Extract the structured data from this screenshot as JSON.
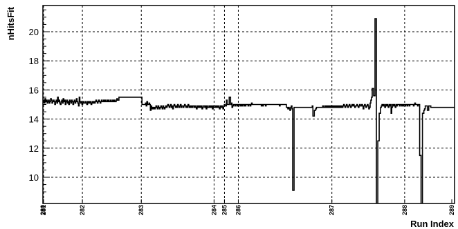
{
  "chart_data": {
    "type": "line",
    "title": "",
    "xlabel": "Run Index",
    "ylabel": "nHitsFit",
    "ylim": [
      8.2,
      21.8
    ],
    "yticks": [
      10,
      12,
      14,
      16,
      18,
      20
    ],
    "grid": true,
    "x_tick_labels": [
      {
        "label": "280",
        "x": 0
      },
      {
        "label": "281",
        "x": 1
      },
      {
        "label": "282",
        "x": 57
      },
      {
        "label": "283",
        "x": 142
      },
      {
        "label": "284",
        "x": 247
      },
      {
        "label": "285",
        "x": 262
      },
      {
        "label": "286",
        "x": 282
      },
      {
        "label": "287",
        "x": 417
      },
      {
        "label": "288",
        "x": 522
      },
      {
        "label": "289",
        "x": 590
      }
    ],
    "x_range": [
      0,
      594
    ],
    "series": [
      {
        "values": [
          15.2,
          15.3,
          15.1,
          15.4,
          15.2,
          15.3,
          15.1,
          15.2,
          15.3,
          15.1,
          15.2,
          15.4,
          15.3,
          15.1,
          15.2,
          15.3,
          15.2,
          15.0,
          15.2,
          15.3,
          15.1,
          15.5,
          15.2,
          15.3,
          15.1,
          15.0,
          15.2,
          15.3,
          15.1,
          15.4,
          15.2,
          15.3,
          15.0,
          15.2,
          15.3,
          15.1,
          15.2,
          15.0,
          15.3,
          15.2,
          15.1,
          15.3,
          15.2,
          15.0,
          15.2,
          15.3,
          15.1,
          15.2,
          15.4,
          15.2,
          15.1,
          14.9,
          15.5,
          15.2,
          15.1,
          15.2,
          15.0,
          15.1,
          15.2,
          15.1,
          15.1,
          15.2,
          15.1,
          15.0,
          15.2,
          15.1,
          15.2,
          15.1,
          15.2,
          15.0,
          15.1,
          15.2,
          15.1,
          15.2,
          15.1,
          15.2,
          15.3,
          15.2,
          15.1,
          15.2,
          15.3,
          15.2,
          15.1,
          15.2,
          15.3,
          15.2,
          15.2,
          15.3,
          15.2,
          15.3,
          15.2,
          15.2,
          15.3,
          15.2,
          15.3,
          15.2,
          15.2,
          15.3,
          15.2,
          15.2,
          15.3,
          15.2,
          15.3,
          15.2,
          15.2,
          15.3,
          15.4,
          15.3,
          15.3,
          15.5,
          15.5,
          15.5,
          15.5,
          15.5,
          15.5,
          15.5,
          15.5,
          15.5,
          15.5,
          15.5,
          15.5,
          15.5,
          15.5,
          15.5,
          15.5,
          15.5,
          15.5,
          15.5,
          15.5,
          15.5,
          15.5,
          15.5,
          15.5,
          15.5,
          15.5,
          15.5,
          15.5,
          15.5,
          15.5,
          15.5,
          15.5,
          15.5,
          15.0,
          15.0,
          15.0,
          15.0,
          15.0,
          15.1,
          14.9,
          15.2,
          15.0,
          15.0,
          15.1,
          15.0,
          14.6,
          14.9,
          14.7,
          14.8,
          14.7,
          14.8,
          14.7,
          14.8,
          14.9,
          14.8,
          14.7,
          14.9,
          14.8,
          14.7,
          14.8,
          14.9,
          14.8,
          14.7,
          14.9,
          14.8,
          14.7,
          14.8,
          14.9,
          14.8,
          14.9,
          15.0,
          14.9,
          14.8,
          14.9,
          15.0,
          14.8,
          14.9,
          14.7,
          14.9,
          15.0,
          14.9,
          14.8,
          14.9,
          14.8,
          15.0,
          14.9,
          14.8,
          14.9,
          15.0,
          14.8,
          14.9,
          14.9,
          14.8,
          14.9,
          15.0,
          14.9,
          14.8,
          14.9,
          14.8,
          15.0,
          14.9,
          14.8,
          14.9,
          14.8,
          14.9,
          14.8,
          14.9,
          14.9,
          14.8,
          14.9,
          14.8,
          14.7,
          14.9,
          14.8,
          14.9,
          14.8,
          14.9,
          14.8,
          14.9,
          14.7,
          14.8,
          14.9,
          14.9,
          14.8,
          14.9,
          14.7,
          14.9,
          14.8,
          14.8,
          14.9,
          14.8,
          14.9,
          14.8,
          14.9,
          14.7,
          14.9,
          14.8,
          14.8,
          14.9,
          14.8,
          14.9,
          14.8,
          14.9,
          14.8,
          14.7,
          14.9,
          14.8,
          14.9,
          14.8,
          14.7,
          14.9,
          15.0,
          14.9,
          14.9,
          15.3,
          15.0,
          15.0,
          15.0,
          15.5,
          15.5,
          15.0,
          15.1,
          14.8,
          14.9,
          15.0,
          15.0,
          14.9,
          15.0,
          15.0,
          14.9,
          15.0,
          14.9,
          15.0,
          15.0,
          14.9,
          15.0,
          14.9,
          15.0,
          15.0,
          14.9,
          15.0,
          14.9,
          15.0,
          15.0,
          15.0,
          14.9,
          15.0,
          15.0,
          14.9,
          15.0,
          15.1,
          15.0,
          15.0,
          15.0,
          15.0,
          15.0,
          15.0,
          15.0,
          15.0,
          15.0,
          15.0,
          15.0,
          15.0,
          15.0,
          14.9,
          15.0,
          14.9,
          15.0,
          15.0,
          15.0,
          14.9,
          15.0,
          15.0,
          15.0,
          15.0,
          15.0,
          15.0,
          15.0,
          15.0,
          15.0,
          15.0,
          15.0,
          15.0,
          15.0,
          15.0,
          15.0,
          15.0,
          15.0,
          15.0,
          15.0,
          14.9,
          15.0,
          15.0,
          15.0,
          15.0,
          15.0,
          15.0,
          15.0,
          15.0,
          15.0,
          14.8,
          14.8,
          14.7,
          14.8,
          14.7,
          14.6,
          14.8,
          14.9,
          14.7,
          9.1,
          9.1,
          14.8,
          14.8,
          14.8,
          14.8,
          14.8,
          14.8,
          14.8,
          14.8,
          14.8,
          14.8,
          14.8,
          14.8,
          14.8,
          14.8,
          14.8,
          14.8,
          14.8,
          14.8,
          14.8,
          14.8,
          14.8,
          14.8,
          14.8,
          14.8,
          14.8,
          14.8,
          14.9,
          14.2,
          14.2,
          14.6,
          14.6,
          14.7,
          14.8,
          14.8,
          14.8,
          14.8,
          14.8,
          14.8,
          14.8,
          14.8,
          14.8,
          14.9,
          14.8,
          14.8,
          14.9,
          14.8,
          14.9,
          14.8,
          14.9,
          14.8,
          14.9,
          14.8,
          14.9,
          14.8,
          14.9,
          14.8,
          14.9,
          14.8,
          14.9,
          14.8,
          14.9,
          14.8,
          14.9,
          14.8,
          14.9,
          14.8,
          14.9,
          14.8,
          14.9,
          14.8,
          14.9,
          15.0,
          14.9,
          14.8,
          14.9,
          15.0,
          14.9,
          14.8,
          14.9,
          15.0,
          14.9,
          14.8,
          14.9,
          15.0,
          14.9,
          15.0,
          14.9,
          14.8,
          14.9,
          14.9,
          15.0,
          14.9,
          14.8,
          14.9,
          15.0,
          14.9,
          14.9,
          15.0,
          14.9,
          14.7,
          14.9,
          15.0,
          14.9,
          14.8,
          14.9,
          15.0,
          14.9,
          14.7,
          14.8,
          15.1,
          15.3,
          15.5,
          16.1,
          16.1,
          15.6,
          15.6,
          20.9,
          20.9,
          7.0,
          7.0,
          12.5,
          12.5,
          14.4,
          14.4,
          14.8,
          14.9,
          15.0,
          14.9,
          15.0,
          14.9,
          14.8,
          15.0,
          14.9,
          15.0,
          14.9,
          14.8,
          15.0,
          14.9,
          15.0,
          14.4,
          14.8,
          15.0,
          14.9,
          15.0,
          14.9,
          14.8,
          15.0,
          14.9,
          15.0,
          15.0,
          15.0,
          14.9,
          15.0,
          15.0,
          14.9,
          15.0,
          14.9,
          15.0,
          15.0,
          14.9,
          15.0,
          15.0,
          14.9,
          15.0,
          15.0,
          14.9,
          15.0,
          15.0,
          15.0,
          15.0,
          15.0,
          14.9,
          15.0,
          15.1,
          15.0,
          15.0,
          15.0,
          14.9,
          15.0,
          15.0,
          11.5,
          11.5,
          7.0,
          7.0,
          14.4,
          14.4,
          14.6,
          14.7,
          14.9,
          14.9,
          14.9,
          14.6,
          14.6,
          14.9,
          14.9,
          14.9,
          14.8,
          14.8,
          14.8,
          14.8,
          14.8,
          14.8,
          14.8,
          14.8,
          14.8,
          14.8,
          14.8,
          14.8,
          14.8,
          14.8,
          14.8,
          14.8,
          14.8,
          14.8,
          14.8,
          14.8,
          14.8,
          14.8,
          14.8,
          14.8,
          14.8,
          14.8,
          14.8,
          14.8,
          14.8,
          14.8,
          14.8,
          14.8,
          14.8,
          14.8
        ]
      }
    ]
  }
}
